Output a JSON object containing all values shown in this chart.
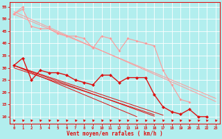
{
  "bg_color": "#b2eeee",
  "grid_color": "#ffffff",
  "xlabel": "Vent moyen/en rafales ( km/h )",
  "x": [
    0,
    1,
    2,
    3,
    4,
    5,
    6,
    7,
    8,
    9,
    10,
    11,
    12,
    13,
    14,
    15,
    16,
    17,
    18,
    19,
    20,
    21,
    22,
    23
  ],
  "ylim": [
    7,
    57
  ],
  "xlim": [
    -0.5,
    23.5
  ],
  "yticks": [
    10,
    15,
    20,
    25,
    30,
    35,
    40,
    45,
    50,
    55
  ],
  "color_light": "#ff9999",
  "color_dark": "#dd1111",
  "light_marker_series": [
    [
      52,
      54,
      47,
      46,
      46,
      44,
      43,
      43,
      42,
      38,
      43,
      42,
      37,
      42,
      41,
      40,
      39,
      29,
      23,
      17,
      16,
      null,
      null,
      null
    ],
    [
      52,
      55,
      null,
      null,
      47,
      null,
      null,
      null,
      null,
      null,
      null,
      null,
      null,
      null,
      null,
      null,
      null,
      null,
      null,
      null,
      null,
      null,
      null,
      null
    ]
  ],
  "light_trend_series": [
    [
      52,
      50.5,
      49,
      47.5,
      46,
      44.5,
      43,
      41.5,
      40,
      38.5,
      37,
      35.5,
      34,
      32.5,
      31,
      29.5,
      28,
      26.5,
      25,
      23.5,
      22,
      20.5,
      19,
      17.5
    ],
    [
      53,
      51.4,
      49.8,
      48.2,
      46.6,
      45,
      43.4,
      41.8,
      40.2,
      38.6,
      37,
      35.4,
      33.8,
      32.2,
      30.6,
      29,
      27.4,
      25.8,
      24.2,
      22.6,
      21,
      19.4,
      17.8,
      16.2
    ]
  ],
  "dark_marker_series": [
    [
      31,
      34,
      25,
      29,
      28,
      28,
      27,
      25,
      24,
      23,
      27,
      27,
      24,
      26,
      26,
      26,
      19,
      14,
      12,
      11,
      13,
      10,
      10,
      null
    ]
  ],
  "dark_trend_series": [
    [
      31,
      29.5,
      28,
      26.5,
      25,
      23.5,
      22,
      20.5,
      19,
      17.5,
      16,
      14.5,
      13,
      11.5,
      10,
      null,
      null,
      null,
      null,
      null,
      null,
      null,
      null,
      null
    ],
    [
      31,
      29.7,
      28.4,
      27.1,
      25.8,
      24.5,
      23.2,
      21.9,
      20.6,
      19.3,
      18,
      16.7,
      15.4,
      14.1,
      12.8,
      11.5,
      10.2,
      null,
      null,
      null,
      null,
      null,
      null,
      null
    ],
    [
      31,
      29.8,
      28.6,
      27.4,
      26.2,
      25,
      23.8,
      22.6,
      21.4,
      20.2,
      19,
      17.8,
      16.6,
      15.4,
      14.2,
      13,
      11.8,
      10.6,
      null,
      null,
      null,
      null,
      null,
      null
    ],
    [
      30,
      28.8,
      27.6,
      26.4,
      25.2,
      24,
      22.8,
      21.6,
      20.4,
      19.2,
      18,
      16.8,
      15.6,
      14.4,
      13.2,
      12,
      10.8,
      null,
      null,
      null,
      null,
      null,
      null,
      null
    ]
  ]
}
